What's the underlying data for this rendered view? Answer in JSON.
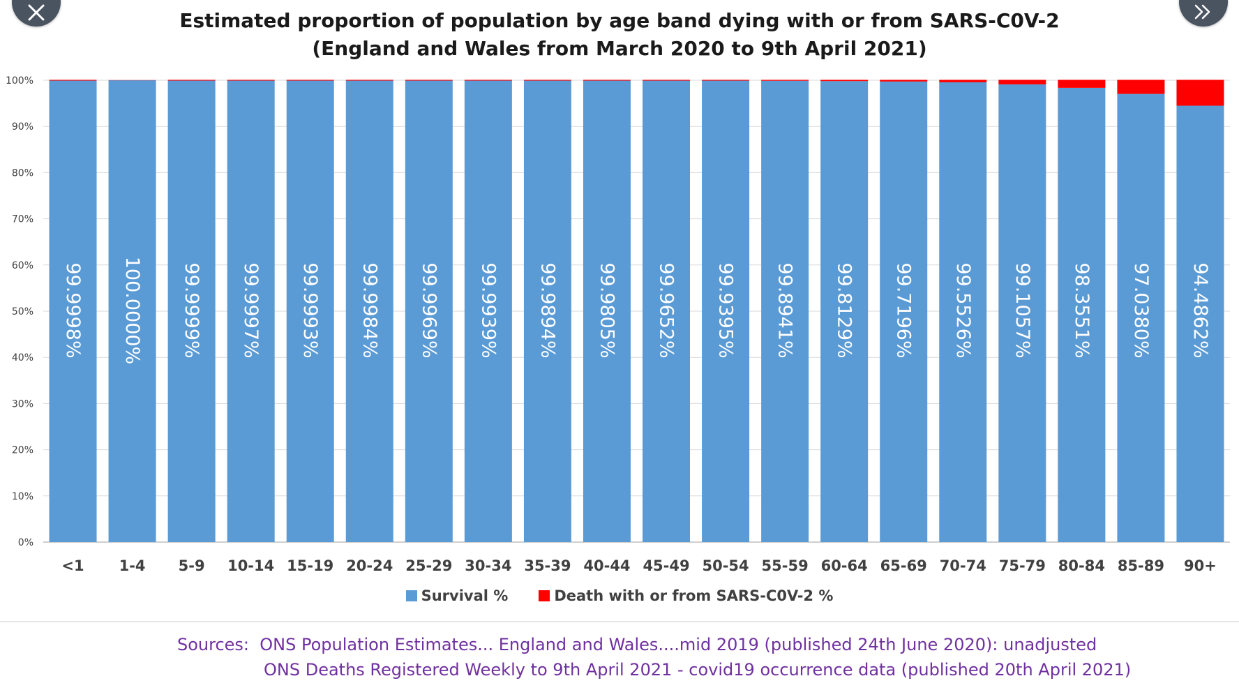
{
  "header": {
    "title_line1": "Estimated proportion of population by age band dying with or from SARS-C0V-2",
    "title_line2": "(England and Wales from March 2020 to 9th April 2021)"
  },
  "controls": {
    "close_icon": "close-icon",
    "next_icon": "double-chevron-right-icon"
  },
  "colors": {
    "survival": "#5b9bd5",
    "death": "#ff0000",
    "grid": "#d9d9d9",
    "sources_text": "#7030a0"
  },
  "chart_data": {
    "type": "bar",
    "stacked": true,
    "title": "Estimated proportion of population by age band dying with or from SARS-C0V-2 (England and Wales from March 2020 to 9th April 2021)",
    "categories": [
      "<1",
      "1-4",
      "5-9",
      "10-14",
      "15-19",
      "20-24",
      "25-29",
      "30-34",
      "35-39",
      "40-44",
      "45-49",
      "50-54",
      "55-59",
      "60-64",
      "65-69",
      "70-74",
      "75-79",
      "80-84",
      "85-89",
      "90+"
    ],
    "series": [
      {
        "name": "Survival %",
        "color": "#5b9bd5",
        "values": [
          99.9998,
          100.0,
          99.9999,
          99.9997,
          99.9993,
          99.9984,
          99.9969,
          99.9939,
          99.9894,
          99.9805,
          99.9652,
          99.9395,
          99.8941,
          99.8129,
          99.7196,
          99.5526,
          99.1057,
          98.3551,
          97.038,
          94.4862
        ],
        "labels": [
          "99.9998%",
          "100.0000%",
          "99.9999%",
          "99.9997%",
          "99.9993%",
          "99.9984%",
          "99.9969%",
          "99.9939%",
          "99.9894%",
          "99.9805%",
          "99.9652%",
          "99.9395%",
          "99.8941%",
          "99.8129%",
          "99.7196%",
          "99.5526%",
          "99.1057%",
          "98.3551%",
          "97.0380%",
          "94.4862%"
        ]
      },
      {
        "name": "Death with or from SARS-C0V-2 %",
        "color": "#ff0000",
        "values": [
          0.0002,
          0.0,
          0.0001,
          0.0003,
          0.0007,
          0.0016,
          0.0031,
          0.0061,
          0.0106,
          0.0195,
          0.0348,
          0.0605,
          0.1059,
          0.1871,
          0.2804,
          0.4474,
          0.8943,
          1.6449,
          2.962,
          5.5138
        ]
      }
    ],
    "y_ticks": [
      "0%",
      "10%",
      "20%",
      "30%",
      "40%",
      "50%",
      "60%",
      "70%",
      "80%",
      "90%",
      "100%"
    ],
    "ylim": [
      0,
      100
    ],
    "legend_position": "bottom",
    "grid": true
  },
  "sources": {
    "line1": "Sources:  ONS Population Estimates... England and Wales....mid 2019 (published 24th June 2020): unadjusted",
    "line2": "ONS Deaths Registered Weekly to 9th April 2021 - covid19 occurrence data (published 20th April 2021)"
  }
}
